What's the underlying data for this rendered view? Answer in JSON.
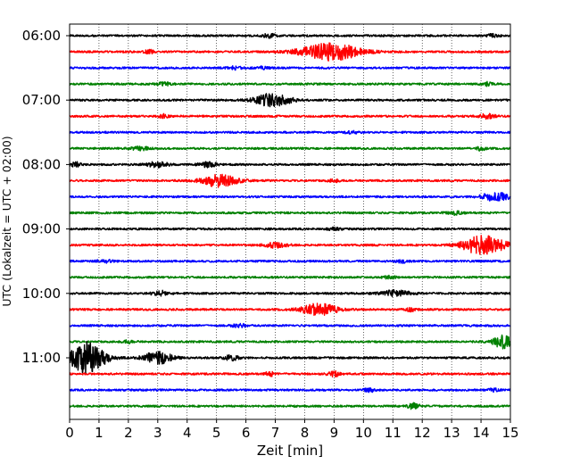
{
  "chart_data": {
    "type": "line",
    "title": "",
    "xlabel": "Zeit  [min]",
    "ylabel": "UTC (Lokalzeit = UTC + 02:00)",
    "xlim": [
      0,
      15
    ],
    "x_ticks": [
      0,
      1,
      2,
      3,
      4,
      5,
      6,
      7,
      8,
      9,
      10,
      11,
      12,
      13,
      14,
      15
    ],
    "y_tick_labels": [
      "06:00",
      "07:00",
      "08:00",
      "09:00",
      "10:00",
      "11:00"
    ],
    "grid": "vertical dotted lines at each minute",
    "trace_colors": [
      "#000000",
      "#ff0000",
      "#0000ff",
      "#008000"
    ],
    "trace_interval_minutes": 15,
    "start_time": "06:00",
    "traces": [
      {
        "start": "06:00",
        "color": "#000000",
        "events": [
          {
            "t": 6.8,
            "amp": 0.35,
            "w": 0.5
          },
          {
            "t": 14.4,
            "amp": 0.3,
            "w": 0.4
          }
        ]
      },
      {
        "start": "06:15",
        "color": "#ff0000",
        "events": [
          {
            "t": 8.9,
            "amp": 1.9,
            "w": 2.0
          },
          {
            "t": 2.7,
            "amp": 0.4,
            "w": 0.3
          }
        ]
      },
      {
        "start": "06:30",
        "color": "#0000ff",
        "events": [
          {
            "t": 5.6,
            "amp": 0.3,
            "w": 0.5
          },
          {
            "t": 6.5,
            "amp": 0.25,
            "w": 0.5
          }
        ]
      },
      {
        "start": "06:45",
        "color": "#008000",
        "events": [
          {
            "t": 3.2,
            "amp": 0.35,
            "w": 0.5
          },
          {
            "t": 14.2,
            "amp": 0.35,
            "w": 0.4
          }
        ]
      },
      {
        "start": "07:00",
        "color": "#000000",
        "events": [
          {
            "t": 6.9,
            "amp": 1.4,
            "w": 1.2
          }
        ]
      },
      {
        "start": "07:15",
        "color": "#ff0000",
        "events": [
          {
            "t": 3.2,
            "amp": 0.45,
            "w": 0.3
          },
          {
            "t": 14.2,
            "amp": 0.45,
            "w": 0.6
          }
        ]
      },
      {
        "start": "07:30",
        "color": "#0000ff",
        "events": [
          {
            "t": 9.6,
            "amp": 0.25,
            "w": 0.5
          }
        ]
      },
      {
        "start": "07:45",
        "color": "#008000",
        "events": [
          {
            "t": 2.4,
            "amp": 0.35,
            "w": 0.6
          },
          {
            "t": 14.0,
            "amp": 0.4,
            "w": 0.3
          }
        ]
      },
      {
        "start": "08:00",
        "color": "#000000",
        "events": [
          {
            "t": 0.2,
            "amp": 0.6,
            "w": 0.3
          },
          {
            "t": 3.0,
            "amp": 0.6,
            "w": 0.7
          },
          {
            "t": 4.7,
            "amp": 0.5,
            "w": 0.6
          }
        ]
      },
      {
        "start": "08:15",
        "color": "#ff0000",
        "events": [
          {
            "t": 5.1,
            "amp": 1.3,
            "w": 1.2
          },
          {
            "t": 9.0,
            "amp": 0.3,
            "w": 0.4
          }
        ]
      },
      {
        "start": "08:30",
        "color": "#0000ff",
        "events": [
          {
            "t": 14.5,
            "amp": 0.85,
            "w": 1.0
          }
        ]
      },
      {
        "start": "08:45",
        "color": "#008000",
        "events": [
          {
            "t": 13.1,
            "amp": 0.35,
            "w": 0.5
          }
        ]
      },
      {
        "start": "09:00",
        "color": "#000000",
        "events": [
          {
            "t": 9.0,
            "amp": 0.3,
            "w": 0.4
          }
        ]
      },
      {
        "start": "09:15",
        "color": "#ff0000",
        "events": [
          {
            "t": 14.1,
            "amp": 2.2,
            "w": 1.4
          },
          {
            "t": 7.0,
            "amp": 0.5,
            "w": 0.8
          }
        ]
      },
      {
        "start": "09:30",
        "color": "#0000ff",
        "events": [
          {
            "t": 11.3,
            "amp": 0.35,
            "w": 0.4
          },
          {
            "t": 1.2,
            "amp": 0.3,
            "w": 0.5
          }
        ]
      },
      {
        "start": "09:45",
        "color": "#008000",
        "events": [
          {
            "t": 10.9,
            "amp": 0.25,
            "w": 0.5
          }
        ]
      },
      {
        "start": "10:00",
        "color": "#000000",
        "events": [
          {
            "t": 3.1,
            "amp": 0.5,
            "w": 0.6
          },
          {
            "t": 11.1,
            "amp": 0.65,
            "w": 1.0
          }
        ]
      },
      {
        "start": "10:15",
        "color": "#ff0000",
        "events": [
          {
            "t": 8.5,
            "amp": 1.3,
            "w": 1.2
          },
          {
            "t": 11.6,
            "amp": 0.35,
            "w": 0.4
          }
        ]
      },
      {
        "start": "10:30",
        "color": "#0000ff",
        "events": [
          {
            "t": 5.8,
            "amp": 0.3,
            "w": 0.6
          }
        ]
      },
      {
        "start": "10:45",
        "color": "#008000",
        "events": [
          {
            "t": 14.8,
            "amp": 1.4,
            "w": 0.8
          },
          {
            "t": 2.0,
            "amp": 0.3,
            "w": 0.4
          }
        ]
      },
      {
        "start": "11:00",
        "color": "#000000",
        "events": [
          {
            "t": 0.6,
            "amp": 3.5,
            "w": 1.2
          },
          {
            "t": 3.0,
            "amp": 1.3,
            "w": 1.0
          },
          {
            "t": 5.5,
            "amp": 0.5,
            "w": 0.6
          }
        ]
      },
      {
        "start": "11:15",
        "color": "#ff0000",
        "events": [
          {
            "t": 6.8,
            "amp": 0.5,
            "w": 0.3
          },
          {
            "t": 9.0,
            "amp": 0.55,
            "w": 0.4
          }
        ]
      },
      {
        "start": "11:30",
        "color": "#0000ff",
        "events": [
          {
            "t": 10.2,
            "amp": 0.4,
            "w": 0.4
          },
          {
            "t": 14.4,
            "amp": 0.3,
            "w": 0.4
          }
        ]
      },
      {
        "start": "11:45",
        "color": "#008000",
        "events": [
          {
            "t": 11.7,
            "amp": 0.6,
            "w": 0.4
          }
        ]
      }
    ]
  }
}
